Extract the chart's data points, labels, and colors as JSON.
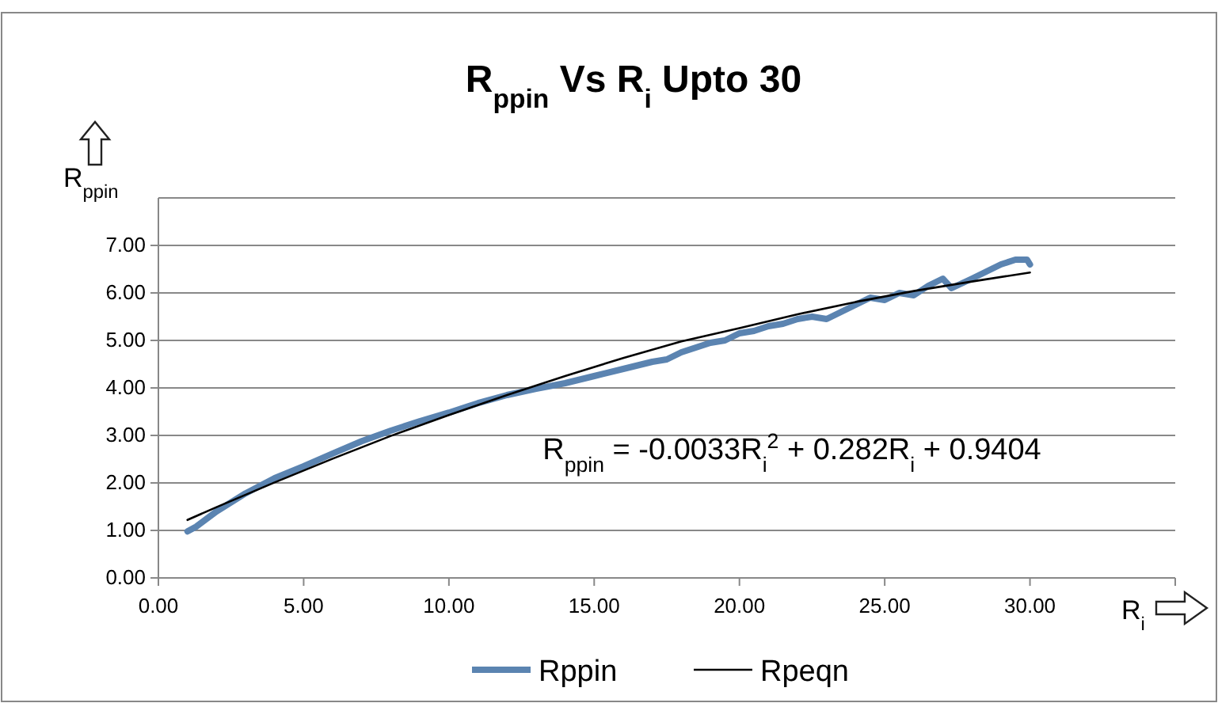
{
  "chart_data": {
    "type": "line",
    "title": "R$_{ppin}$ Vs R$_{i}$ Upto 30",
    "xlabel": "R$_{i}$",
    "ylabel": "R$_{ppin}$",
    "xlim": [
      0,
      35
    ],
    "xticks": [
      {
        "value": 0,
        "label": "0.00"
      },
      {
        "value": 5,
        "label": "5.00"
      },
      {
        "value": 10,
        "label": "10.00"
      },
      {
        "value": 15,
        "label": "15.00"
      },
      {
        "value": 20,
        "label": "20.00"
      },
      {
        "value": 25,
        "label": "25.00"
      },
      {
        "value": 30,
        "label": "30.00"
      },
      {
        "value": 35,
        "label": null
      }
    ],
    "ylim": [
      0,
      8
    ],
    "yticks": [
      {
        "value": 0,
        "label": "0.00"
      },
      {
        "value": 1,
        "label": "1.00"
      },
      {
        "value": 2,
        "label": "2.00"
      },
      {
        "value": 3,
        "label": "3.00"
      },
      {
        "value": 4,
        "label": "4.00"
      },
      {
        "value": 5,
        "label": "5.00"
      },
      {
        "value": 6,
        "label": "6.00"
      },
      {
        "value": 7,
        "label": "7.00"
      }
    ],
    "grid": "y",
    "legend": "bottom",
    "annotations": [
      "R$_{ppin}$ = -0.0033R$_{i}$$^{2}$ + 0.282R$_{i}$ + 0.9404"
    ],
    "series": [
      {
        "name": "Rppin",
        "color": "#5b84b1",
        "x": [
          1,
          1.3,
          2,
          3,
          4,
          5,
          6,
          7,
          8,
          9,
          10,
          11,
          12,
          13,
          14,
          15,
          16,
          17,
          17.5,
          18,
          18.5,
          19,
          19.5,
          20,
          20.5,
          21,
          21.5,
          22,
          22.5,
          23,
          23.5,
          24,
          24.5,
          25,
          25.5,
          26,
          26.5,
          27,
          27.3,
          28,
          28.5,
          29,
          29.5,
          29.9,
          30
        ],
        "values": [
          0.98,
          1.08,
          1.4,
          1.78,
          2.1,
          2.35,
          2.62,
          2.88,
          3.1,
          3.3,
          3.48,
          3.68,
          3.85,
          3.98,
          4.1,
          4.25,
          4.4,
          4.55,
          4.6,
          4.75,
          4.85,
          4.95,
          5.0,
          5.15,
          5.2,
          5.3,
          5.35,
          5.45,
          5.5,
          5.45,
          5.6,
          5.75,
          5.9,
          5.85,
          6.0,
          5.95,
          6.15,
          6.3,
          6.1,
          6.3,
          6.45,
          6.6,
          6.7,
          6.7,
          6.6
        ]
      },
      {
        "name": "Rpeqn",
        "color": "#000000",
        "x": [
          1,
          2,
          4,
          6,
          8,
          10,
          12,
          14,
          16,
          18,
          20,
          22,
          24,
          26,
          28,
          30
        ],
        "values": [
          1.22,
          1.49,
          2.01,
          2.51,
          2.99,
          3.43,
          3.85,
          4.25,
          4.63,
          4.98,
          5.26,
          5.55,
          5.81,
          6.04,
          6.24,
          6.43
        ]
      }
    ]
  }
}
